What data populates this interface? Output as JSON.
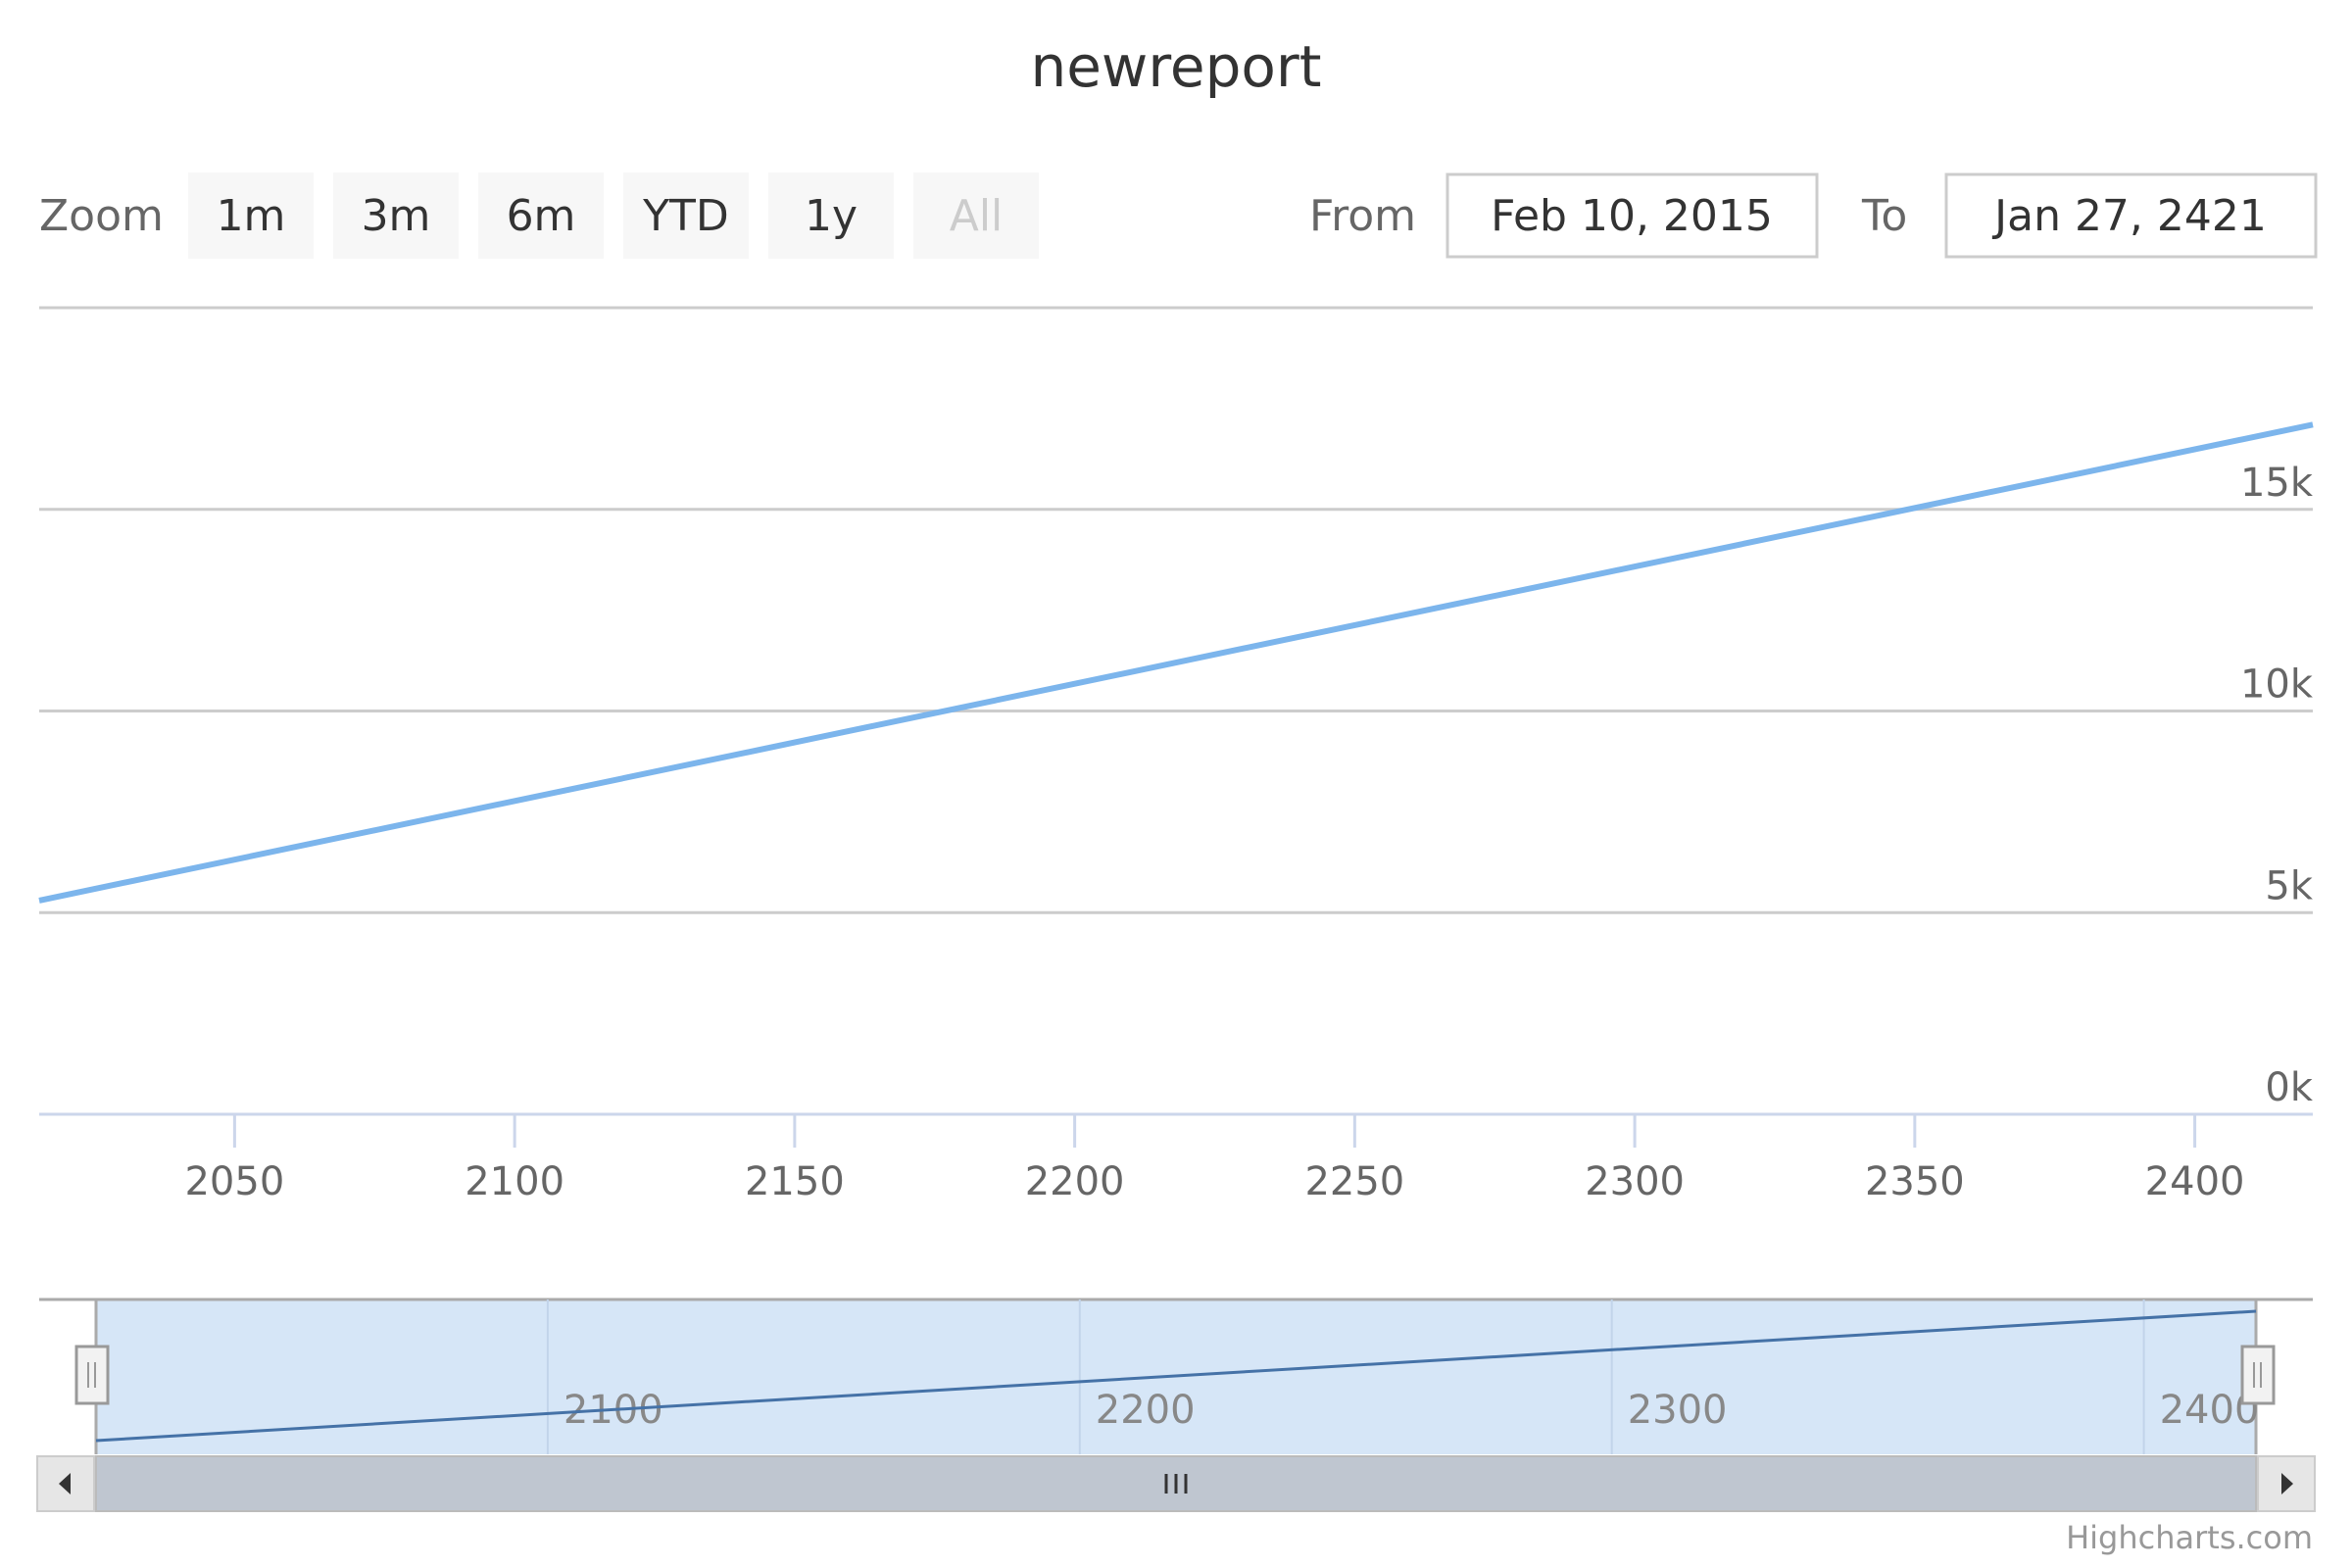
{
  "chart_data": {
    "type": "line",
    "title": "newreport",
    "x": [
      "2015-02-10",
      "2421-01-27"
    ],
    "series": [
      {
        "values": [
          5300,
          17100
        ],
        "color": "#7cb5ec"
      }
    ],
    "xlim": [
      "2015-02-10",
      "2421-01-27"
    ],
    "ylim": [
      0,
      20000
    ],
    "x_ticks": [
      "2050",
      "2100",
      "2150",
      "2200",
      "2250",
      "2300",
      "2350",
      "2400"
    ],
    "y_ticks": [
      "0k",
      "5k",
      "10k",
      "15k"
    ],
    "grid": true,
    "legend": "none"
  },
  "range_selector": {
    "zoom_label": "Zoom",
    "buttons": [
      {
        "label": "1m",
        "state": "normal"
      },
      {
        "label": "3m",
        "state": "normal"
      },
      {
        "label": "6m",
        "state": "normal"
      },
      {
        "label": "YTD",
        "state": "normal"
      },
      {
        "label": "1y",
        "state": "normal"
      },
      {
        "label": "All",
        "state": "disabled"
      }
    ],
    "from_label": "From",
    "from_value": "Feb 10, 2015",
    "to_label": "To",
    "to_value": "Jan 27, 2421"
  },
  "navigator": {
    "tick_labels": [
      "2100",
      "2200",
      "2300",
      "2400"
    ],
    "series_color": "#4572a7",
    "mask_color": "#d6e6f7"
  },
  "credits": "Highcharts.com"
}
